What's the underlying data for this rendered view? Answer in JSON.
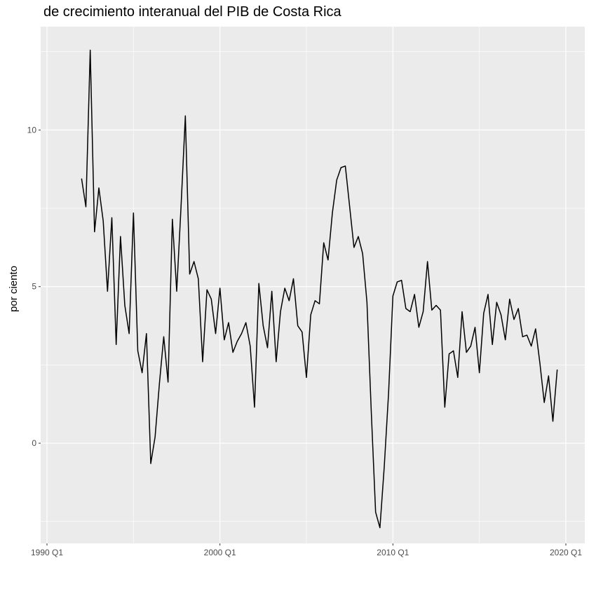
{
  "chart_data": {
    "type": "line",
    "title": "de crecimiento interanual del PIB de Costa Rica",
    "xlabel": "",
    "ylabel": "por ciento",
    "x_ticks": [
      "1990 Q1",
      "2000 Q1",
      "2010 Q1",
      "2020 Q1"
    ],
    "y_ticks": [
      0,
      5,
      10
    ],
    "x_start": "1992 Q1",
    "y_lim": [
      -3.2,
      13.3
    ],
    "grid": true,
    "line_color": "#000000",
    "panel_color": "#ebebeb",
    "gridline_color": "#ffffff",
    "series": [
      {
        "values": [
          8.45,
          7.55,
          12.55,
          6.75,
          8.15,
          7.1,
          4.85,
          7.2,
          3.15,
          6.6,
          4.4,
          3.5,
          7.35,
          2.95,
          2.25,
          3.5,
          -0.65,
          0.2,
          1.9,
          3.4,
          1.95,
          7.15,
          4.85,
          7.55,
          10.45,
          5.4,
          5.8,
          5.25,
          2.6,
          4.9,
          4.6,
          3.5,
          4.95,
          3.3,
          3.85,
          2.9,
          3.25,
          3.5,
          3.85,
          3.1,
          1.15,
          5.1,
          3.75,
          3.05,
          4.85,
          2.6,
          4.2,
          4.95,
          4.55,
          5.25,
          3.75,
          3.55,
          2.1,
          4.1,
          4.55,
          4.45,
          6.4,
          5.85,
          7.35,
          8.4,
          8.8,
          8.85,
          7.55,
          6.25,
          6.6,
          6.05,
          4.5,
          1.0,
          -2.2,
          -2.7,
          -0.75,
          1.6,
          4.7,
          5.15,
          5.2,
          4.3,
          4.2,
          4.75,
          3.7,
          4.2,
          5.8,
          4.25,
          4.4,
          4.25,
          1.15,
          2.85,
          2.95,
          2.1,
          4.2,
          2.9,
          3.1,
          3.7,
          2.25,
          4.15,
          4.75,
          3.15,
          4.5,
          4.1,
          3.3,
          4.6,
          3.95,
          4.3,
          3.4,
          3.45,
          3.1,
          3.65,
          2.55,
          1.3,
          2.15,
          0.7,
          2.35
        ]
      }
    ]
  }
}
